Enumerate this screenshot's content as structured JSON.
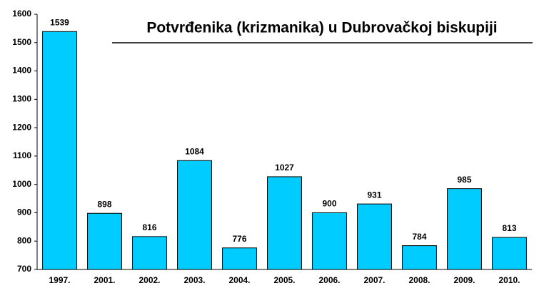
{
  "chart_data": {
    "type": "bar",
    "title": "Potvrđenika (krizmanika) u Dubrovačkoj biskupiji",
    "categories": [
      "1997.",
      "2001.",
      "2002.",
      "2003.",
      "2004.",
      "2005.",
      "2006.",
      "2007.",
      "2008.",
      "2009.",
      "2010."
    ],
    "values": [
      1539,
      898,
      816,
      1084,
      776,
      1027,
      900,
      931,
      784,
      985,
      813
    ],
    "color": "#00ccff",
    "ylim": [
      700,
      1600
    ],
    "yticks": [
      700,
      800,
      900,
      1000,
      1100,
      1200,
      1300,
      1400,
      1500,
      1600
    ],
    "grid": false
  }
}
